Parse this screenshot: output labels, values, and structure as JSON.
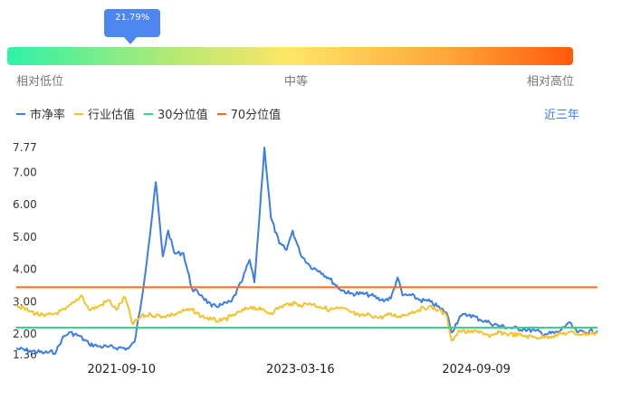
{
  "percentile": {
    "value": 0.2179,
    "label": "21.79%"
  },
  "gauge_labels": {
    "low": "相对低位",
    "mid": "中等",
    "high": "相对高位"
  },
  "legend": [
    {
      "name": "市净率",
      "color": "#3b7de9"
    },
    {
      "name": "行业估值",
      "color": "#f6c22b"
    },
    {
      "name": "30分位值",
      "color": "#2ed98b"
    },
    {
      "name": "70分位值",
      "color": "#ff6a1a"
    }
  ],
  "period_label": "近三年",
  "chart_data": {
    "type": "line",
    "x_range": [
      "2020-10-20",
      "2025-09-18"
    ],
    "ylim": [
      1.36,
      7.77
    ],
    "yticks": [
      "1.36",
      "2.00",
      "3.00",
      "4.00",
      "5.00",
      "6.00",
      "7.00",
      "7.77"
    ],
    "xticks": [
      "2021-09-10",
      "2023-03-16",
      "2024-09-09"
    ],
    "series": [
      {
        "name": "市净率",
        "color": "#3b7de9",
        "points": [
          [
            "2020-10-20",
            1.55
          ],
          [
            "2020-12-01",
            1.48
          ],
          [
            "2021-01-15",
            1.42
          ],
          [
            "2021-02-20",
            1.45
          ],
          [
            "2021-03-10",
            1.85
          ],
          [
            "2021-04-01",
            2.05
          ],
          [
            "2021-05-01",
            1.95
          ],
          [
            "2021-06-01",
            1.7
          ],
          [
            "2021-07-01",
            1.62
          ],
          [
            "2021-08-01",
            1.6
          ],
          [
            "2021-09-01",
            1.58
          ],
          [
            "2021-10-01",
            1.55
          ],
          [
            "2021-10-20",
            1.75
          ],
          [
            "2021-11-10",
            3.0
          ],
          [
            "2021-12-01",
            4.6
          ],
          [
            "2021-12-25",
            6.7
          ],
          [
            "2022-01-15",
            4.4
          ],
          [
            "2022-02-01",
            5.2
          ],
          [
            "2022-02-20",
            4.5
          ],
          [
            "2022-03-20",
            4.5
          ],
          [
            "2022-04-15",
            3.4
          ],
          [
            "2022-05-15",
            3.2
          ],
          [
            "2022-06-15",
            2.85
          ],
          [
            "2022-07-15",
            2.9
          ],
          [
            "2022-08-15",
            3.0
          ],
          [
            "2022-09-15",
            3.6
          ],
          [
            "2022-10-10",
            4.3
          ],
          [
            "2022-10-25",
            3.6
          ],
          [
            "2022-11-10",
            5.7
          ],
          [
            "2022-11-25",
            7.77
          ],
          [
            "2022-12-15",
            5.6
          ],
          [
            "2023-01-10",
            4.8
          ],
          [
            "2023-02-01",
            4.6
          ],
          [
            "2023-02-20",
            5.2
          ],
          [
            "2023-03-15",
            4.5
          ],
          [
            "2023-04-15",
            4.1
          ],
          [
            "2023-05-15",
            3.95
          ],
          [
            "2023-06-15",
            3.7
          ],
          [
            "2023-07-15",
            3.4
          ],
          [
            "2023-08-15",
            3.25
          ],
          [
            "2023-09-20",
            3.25
          ],
          [
            "2023-10-20",
            3.2
          ],
          [
            "2023-11-20",
            3.05
          ],
          [
            "2023-12-20",
            3.1
          ],
          [
            "2024-01-10",
            3.75
          ],
          [
            "2024-01-25",
            3.2
          ],
          [
            "2024-02-20",
            3.2
          ],
          [
            "2024-03-20",
            3.05
          ],
          [
            "2024-04-20",
            3.0
          ],
          [
            "2024-05-20",
            2.8
          ],
          [
            "2024-06-10",
            2.65
          ],
          [
            "2024-06-25",
            2.05
          ],
          [
            "2024-07-20",
            2.55
          ],
          [
            "2024-08-20",
            2.6
          ],
          [
            "2024-09-20",
            2.45
          ],
          [
            "2024-10-20",
            2.35
          ],
          [
            "2024-11-20",
            2.25
          ],
          [
            "2024-12-20",
            2.2
          ],
          [
            "2025-02-01",
            2.15
          ],
          [
            "2025-03-10",
            2.1
          ],
          [
            "2025-04-10",
            2.0
          ],
          [
            "2025-05-20",
            2.05
          ],
          [
            "2025-06-20",
            2.35
          ],
          [
            "2025-07-20",
            2.05
          ],
          [
            "2025-09-18",
            2.1
          ]
        ]
      },
      {
        "name": "行业估值",
        "color": "#f6c22b",
        "points": [
          [
            "2020-10-20",
            2.9
          ],
          [
            "2020-12-01",
            2.7
          ],
          [
            "2021-01-15",
            2.55
          ],
          [
            "2021-02-20",
            2.65
          ],
          [
            "2021-03-20",
            2.75
          ],
          [
            "2021-04-20",
            3.0
          ],
          [
            "2021-05-10",
            3.2
          ],
          [
            "2021-06-01",
            2.75
          ],
          [
            "2021-07-01",
            2.85
          ],
          [
            "2021-08-01",
            3.05
          ],
          [
            "2021-08-25",
            2.75
          ],
          [
            "2021-09-20",
            3.15
          ],
          [
            "2021-10-15",
            2.3
          ],
          [
            "2021-11-10",
            2.55
          ],
          [
            "2021-12-10",
            2.6
          ],
          [
            "2022-01-15",
            2.55
          ],
          [
            "2022-02-15",
            2.6
          ],
          [
            "2022-03-15",
            2.7
          ],
          [
            "2022-04-15",
            2.75
          ],
          [
            "2022-05-15",
            2.55
          ],
          [
            "2022-06-15",
            2.45
          ],
          [
            "2022-07-15",
            2.4
          ],
          [
            "2022-08-15",
            2.55
          ],
          [
            "2022-09-15",
            2.7
          ],
          [
            "2022-10-15",
            2.85
          ],
          [
            "2022-11-15",
            2.75
          ],
          [
            "2022-12-15",
            2.65
          ],
          [
            "2023-01-15",
            2.85
          ],
          [
            "2023-02-15",
            2.95
          ],
          [
            "2023-03-15",
            2.9
          ],
          [
            "2023-04-15",
            2.95
          ],
          [
            "2023-05-15",
            2.85
          ],
          [
            "2023-06-15",
            2.75
          ],
          [
            "2023-07-15",
            2.8
          ],
          [
            "2023-08-15",
            2.7
          ],
          [
            "2023-09-15",
            2.55
          ],
          [
            "2023-10-15",
            2.6
          ],
          [
            "2023-11-15",
            2.5
          ],
          [
            "2023-12-15",
            2.6
          ],
          [
            "2024-01-15",
            2.55
          ],
          [
            "2024-02-15",
            2.65
          ],
          [
            "2024-03-15",
            2.75
          ],
          [
            "2024-04-15",
            2.85
          ],
          [
            "2024-05-15",
            2.75
          ],
          [
            "2024-06-10",
            2.55
          ],
          [
            "2024-06-25",
            1.8
          ],
          [
            "2024-07-20",
            2.1
          ],
          [
            "2024-08-20",
            2.05
          ],
          [
            "2024-09-20",
            2.1
          ],
          [
            "2024-10-20",
            1.9
          ],
          [
            "2024-11-20",
            2.05
          ],
          [
            "2024-12-20",
            2.0
          ],
          [
            "2025-02-01",
            1.95
          ],
          [
            "2025-03-10",
            1.9
          ],
          [
            "2025-04-10",
            1.92
          ],
          [
            "2025-05-20",
            1.98
          ],
          [
            "2025-06-20",
            2.05
          ],
          [
            "2025-07-20",
            2.0
          ],
          [
            "2025-09-18",
            2.02
          ]
        ]
      },
      {
        "name": "30分位值",
        "color": "#2ed98b",
        "points": [
          [
            "2020-10-20",
            2.2
          ],
          [
            "2025-09-18",
            2.2
          ]
        ]
      },
      {
        "name": "70分位值",
        "color": "#ff6a1a",
        "points": [
          [
            "2020-10-20",
            3.45
          ],
          [
            "2025-09-18",
            3.45
          ]
        ]
      }
    ]
  }
}
